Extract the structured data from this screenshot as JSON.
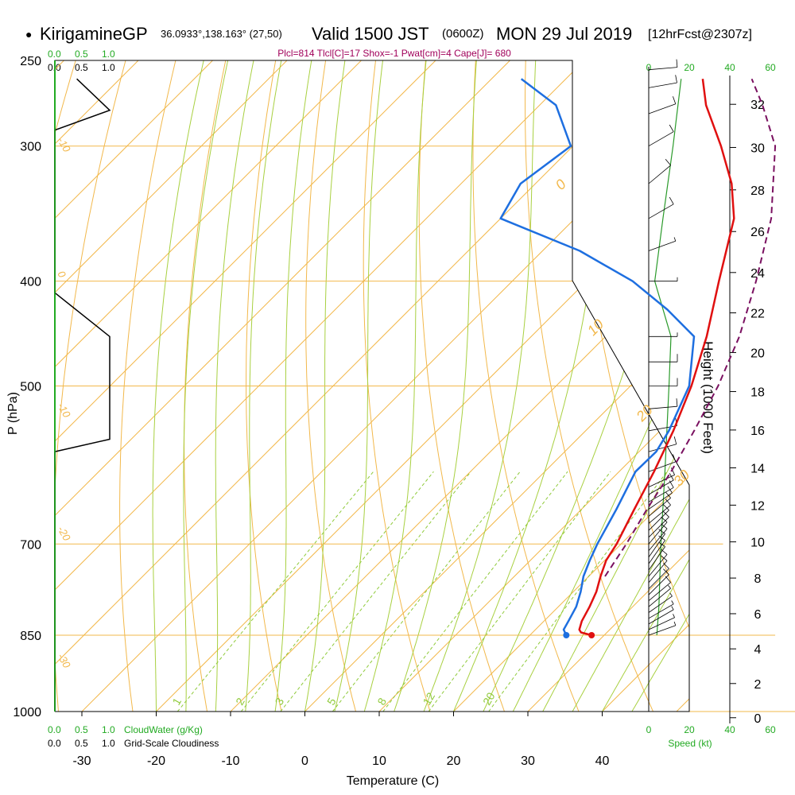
{
  "header": {
    "dot_glyph": "●",
    "station": "KirigamineGP",
    "coords": "36.0933°,138.163° (27,50)",
    "valid": "Valid 1500 JST",
    "utc": "(0600Z)",
    "date": "MON 29 Jul 2019",
    "fcst": "[12hrFcst@2307z]",
    "indices": "Plcl=814 Tlcl[C]=17 Shox=-1 Pwat[cm]=4 Cape[J]= 680",
    "indices_color": "#a0005a"
  },
  "cloud_scale_top": {
    "cw_labels": [
      "0.0",
      "0.5",
      "1.0"
    ],
    "cl_labels": [
      "0.0",
      "0.5",
      "1.0"
    ]
  },
  "cloud_scale_bottom": {
    "cw_labels": [
      "0.0",
      "0.5",
      "1.0"
    ],
    "cw_title": "CloudWater (g/Kg)",
    "cl_labels": [
      "0.0",
      "0.5",
      "1.0"
    ],
    "cl_title": "Grid-Scale Cloudiness"
  },
  "speed_scale_top": [
    "0",
    "20",
    "40",
    "60"
  ],
  "speed_scale_bottom": [
    "0",
    "20",
    "40",
    "60"
  ],
  "speed_title": "Speed (kt)",
  "colors": {
    "temp": "#e01010",
    "dewpoint": "#1e6fe0",
    "parcel": "#7a1060",
    "isobar": "#f2b84b",
    "isotherm": "#f2b84b",
    "dry_adiabat": "#f2b84b",
    "moist_adiabat": "#a8d040",
    "mixing": "#8fca3a",
    "speed": "#2a9a2a",
    "cloud_axis": "#22aa22"
  },
  "chart_data": {
    "type": "line",
    "subtype": "skew-T log-P sounding",
    "xlabel": "Temperature (C)",
    "ylabel": "P (hPa)",
    "y2label": "Height (1000 Feet)",
    "x_ticks": [
      -30,
      -20,
      -10,
      0,
      10,
      20,
      30,
      40
    ],
    "p_ticks": [
      250,
      300,
      400,
      500,
      700,
      850,
      1000
    ],
    "height_ticks": [
      0,
      2,
      4,
      6,
      8,
      10,
      12,
      14,
      16,
      18,
      20,
      22,
      24,
      26,
      28,
      30,
      32
    ],
    "isotherm_labels": [
      "0",
      "10",
      "20",
      "30"
    ],
    "dry_adiabat_labels": [
      "-10",
      "0",
      "-10",
      "-20",
      "-30"
    ],
    "mixing_ratio_labels": [
      "1",
      "2",
      "3",
      "5",
      "8",
      "12",
      "20"
    ],
    "temperature": {
      "p": [
        850,
        845,
        840,
        825,
        800,
        775,
        750,
        725,
        700,
        650,
        600,
        550,
        500,
        450,
        400,
        350,
        325,
        300,
        275,
        260
      ],
      "t": [
        28.3,
        26.5,
        25.9,
        25.1,
        24.2,
        23.1,
        21.6,
        20.2,
        19.4,
        17.1,
        14.7,
        11.8,
        8.2,
        3.6,
        -2.2,
        -8.6,
        -13.6,
        -20.1,
        -27.6,
        -31.6
      ]
    },
    "dewpoint": {
      "p": [
        850,
        840,
        825,
        800,
        775,
        750,
        725,
        700,
        650,
        600,
        575,
        550,
        500,
        450,
        425,
        400,
        375,
        350,
        325,
        300,
        275,
        260
      ],
      "td": [
        24.9,
        23.8,
        23.3,
        22.4,
        21.0,
        19.3,
        18.0,
        16.8,
        14.7,
        12.2,
        12.3,
        11.2,
        7.9,
        1.9,
        -5.3,
        -13.8,
        -25.0,
        -40.0,
        -42.0,
        -40.3,
        -47.8,
        -56.0
      ]
    },
    "parcel": {
      "p": [
        750,
        700,
        650,
        600,
        550,
        500,
        450,
        400,
        350,
        300,
        275,
        260
      ],
      "t": [
        22.2,
        20.7,
        18.8,
        17.0,
        14.6,
        11.8,
        8.0,
        2.8,
        -3.6,
        -12.8,
        -20.0,
        -25.0
      ]
    },
    "wind_speed": {
      "p": [
        850,
        800,
        700,
        600,
        500,
        450,
        400,
        350,
        300,
        260
      ],
      "kt": [
        4,
        5,
        6,
        8,
        10,
        11,
        3,
        7,
        12,
        16
      ]
    },
    "wind_barbs": {
      "p": [
        850,
        840,
        830,
        820,
        810,
        800,
        790,
        780,
        770,
        760,
        750,
        740,
        730,
        720,
        710,
        700,
        690,
        680,
        670,
        660,
        650,
        640,
        630,
        620,
        600,
        575,
        550,
        525,
        500,
        475,
        450,
        400,
        375,
        350,
        325,
        300,
        280,
        265,
        255
      ],
      "speed": [
        5,
        5,
        5,
        5,
        5,
        5,
        10,
        10,
        10,
        10,
        10,
        10,
        10,
        10,
        10,
        10,
        10,
        10,
        10,
        10,
        10,
        10,
        10,
        10,
        10,
        10,
        10,
        10,
        10,
        10,
        5,
        5,
        5,
        10,
        10,
        10,
        10,
        10,
        10
      ],
      "dir": [
        250,
        245,
        240,
        240,
        235,
        230,
        230,
        225,
        225,
        220,
        220,
        215,
        215,
        215,
        220,
        220,
        225,
        225,
        230,
        230,
        235,
        240,
        240,
        245,
        250,
        255,
        260,
        265,
        270,
        270,
        270,
        270,
        250,
        240,
        230,
        240,
        250,
        260,
        265
      ]
    },
    "cloud_water_profile": {
      "p": [
        1000,
        850,
        700,
        600,
        500,
        450,
        400,
        300,
        275,
        260
      ],
      "v": [
        0,
        0,
        0,
        0,
        0,
        0,
        0,
        0,
        0,
        0
      ]
    },
    "cloudiness_profile": {
      "p": [
        1000,
        575,
        560,
        450,
        410,
        290,
        278,
        260
      ],
      "v": [
        0,
        0,
        1.0,
        1.0,
        0,
        0,
        1.0,
        0.4
      ]
    }
  }
}
